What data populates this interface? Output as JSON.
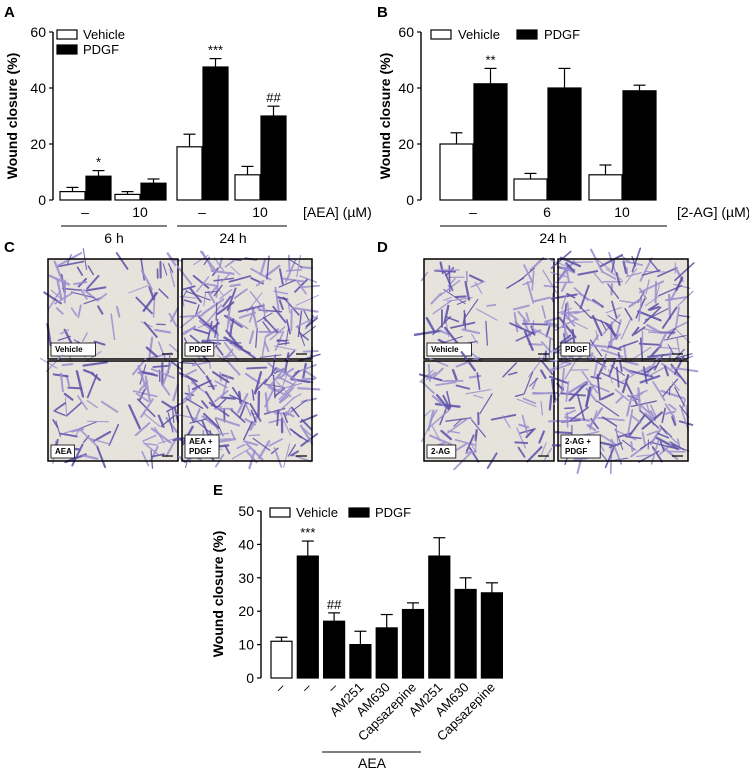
{
  "panel_letters": {
    "a": "A",
    "b": "B",
    "c": "C",
    "d": "D",
    "e": "E"
  },
  "colors": {
    "vehicle": "#ffffff",
    "pdgf": "#000000",
    "stain_dark": "#5a4fa8",
    "stain_light": "#9a8fd0",
    "field_bg": "#e9e6dc"
  },
  "legend": {
    "vehicle": "Vehicle",
    "pdgf": "PDGF"
  },
  "chart_data": [
    {
      "panel": "A",
      "type": "bar",
      "ylabel": "Wound closure (%)",
      "ylim": [
        0,
        60
      ],
      "yticks": [
        "0",
        "20",
        "40",
        "60"
      ],
      "categories": [
        "–",
        "10",
        "–",
        "10"
      ],
      "series": [
        {
          "name": "Vehicle",
          "values": [
            3,
            2,
            19,
            9
          ],
          "errors": [
            1.5,
            1,
            4.5,
            3
          ]
        },
        {
          "name": "PDGF",
          "values": [
            8.5,
            6,
            47.5,
            30
          ],
          "errors": [
            2,
            1.5,
            3,
            3.5
          ]
        }
      ],
      "annotations": [
        "",
        "",
        "",
        "",
        "",
        "",
        "",
        "",
        "*",
        "",
        "***",
        "##"
      ],
      "axis_suffix": "[AEA] (µM)",
      "groups": [
        {
          "label": "6 h"
        },
        {
          "label": "24 h"
        }
      ]
    },
    {
      "panel": "B",
      "type": "bar",
      "ylabel": "Wound closure (%)",
      "ylim": [
        0,
        60
      ],
      "yticks": [
        "0",
        "20",
        "40",
        "60"
      ],
      "categories": [
        "–",
        "6",
        "10"
      ],
      "series": [
        {
          "name": "Vehicle",
          "values": [
            20,
            7.5,
            9
          ],
          "errors": [
            4,
            2,
            3.5
          ]
        },
        {
          "name": "PDGF",
          "values": [
            41.5,
            40,
            39
          ],
          "errors": [
            5.5,
            7,
            2
          ]
        }
      ],
      "annotations": [
        "",
        "",
        "",
        "**",
        "",
        ""
      ],
      "axis_suffix": "[2-AG] (µM)",
      "groups": [
        {
          "label": "24 h"
        }
      ]
    },
    {
      "panel": "E",
      "type": "bar",
      "ylabel": "Wound closure (%)",
      "ylim": [
        0,
        50
      ],
      "yticks": [
        "0",
        "10",
        "20",
        "30",
        "40",
        "50"
      ],
      "categories": [
        "–",
        "–",
        "–",
        "AM251",
        "AM630",
        "Capsazepine",
        "AM251",
        "AM630",
        "Capsazepine"
      ],
      "bar_groups": [
        "Vehicle",
        "PDGF",
        "PDGF",
        "PDGF",
        "PDGF",
        "PDGF",
        "PDGF",
        "PDGF",
        "PDGF"
      ],
      "values": [
        11,
        36.5,
        17,
        10,
        15,
        20.5,
        36.5,
        26.5,
        25.5
      ],
      "errors": [
        1.2,
        4.5,
        2.5,
        4,
        4,
        2,
        5.5,
        3.5,
        3
      ],
      "annotations": [
        "",
        "***",
        "##",
        "",
        "",
        "",
        "",
        "",
        ""
      ],
      "groups": [
        {
          "label": "AEA"
        }
      ]
    }
  ],
  "micrographs": {
    "c": [
      "Vehicle",
      "PDGF",
      "AEA",
      "AEA +\nPDGF"
    ],
    "d": [
      "Vehicle",
      "PDGF",
      "2-AG",
      "2-AG +\nPDGF"
    ]
  }
}
